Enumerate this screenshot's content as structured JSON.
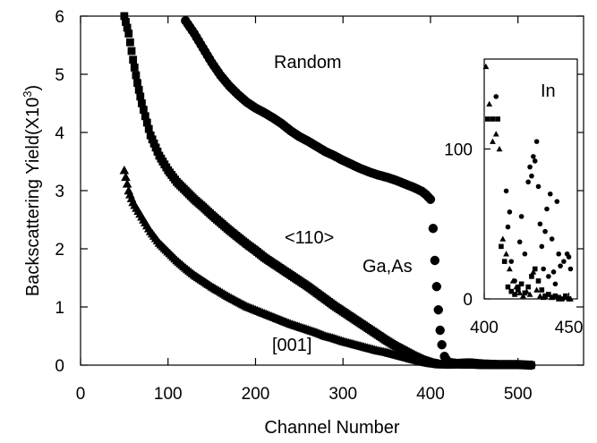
{
  "chart_data": [
    {
      "type": "scatter",
      "title": "",
      "xlabel": "Channel Number",
      "ylabel": "Backscattering Yield(X10",
      "ylabel_superscript": "3",
      "ylabel_suffix": ")",
      "xlim": [
        0,
        575
      ],
      "ylim": [
        0,
        6
      ],
      "xticks": [
        0,
        100,
        200,
        300,
        400,
        500
      ],
      "yticks": [
        0,
        1,
        2,
        3,
        4,
        5,
        6
      ],
      "grid": false,
      "annotations": [
        "Random",
        "<110>",
        "Ga,As",
        "[001]"
      ],
      "series": [
        {
          "name": "Random",
          "marker": "circle",
          "color": "#000000",
          "points": [
            [
              120,
              5.92
            ],
            [
              130,
              5.7
            ],
            [
              140,
              5.45
            ],
            [
              150,
              5.2
            ],
            [
              160,
              4.98
            ],
            [
              170,
              4.8
            ],
            [
              180,
              4.65
            ],
            [
              190,
              4.52
            ],
            [
              200,
              4.42
            ],
            [
              210,
              4.34
            ],
            [
              220,
              4.25
            ],
            [
              230,
              4.15
            ],
            [
              240,
              4.03
            ],
            [
              250,
              3.93
            ],
            [
              260,
              3.85
            ],
            [
              270,
              3.76
            ],
            [
              280,
              3.67
            ],
            [
              290,
              3.6
            ],
            [
              300,
              3.52
            ],
            [
              310,
              3.45
            ],
            [
              320,
              3.38
            ],
            [
              330,
              3.32
            ],
            [
              340,
              3.27
            ],
            [
              350,
              3.23
            ],
            [
              360,
              3.18
            ],
            [
              370,
              3.12
            ],
            [
              380,
              3.06
            ],
            [
              390,
              2.99
            ],
            [
              395,
              2.93
            ],
            [
              400,
              2.85
            ],
            [
              403,
              2.35
            ],
            [
              405,
              1.8
            ],
            [
              407,
              1.35
            ],
            [
              409,
              0.95
            ],
            [
              411,
              0.6
            ],
            [
              413,
              0.35
            ],
            [
              416,
              0.15
            ],
            [
              420,
              0.05
            ],
            [
              430,
              0.03
            ],
            [
              445,
              0.04
            ],
            [
              460,
              0.02
            ],
            [
              480,
              0.01
            ],
            [
              500,
              0.01
            ],
            [
              515,
              0.0
            ]
          ]
        },
        {
          "name": "<110>",
          "marker": "square",
          "color": "#000000",
          "points": [
            [
              50,
              6.0
            ],
            [
              55,
              5.7
            ],
            [
              60,
              5.25
            ],
            [
              65,
              4.85
            ],
            [
              70,
              4.5
            ],
            [
              80,
              3.95
            ],
            [
              90,
              3.6
            ],
            [
              100,
              3.35
            ],
            [
              110,
              3.15
            ],
            [
              120,
              3.0
            ],
            [
              130,
              2.85
            ],
            [
              140,
              2.72
            ],
            [
              150,
              2.58
            ],
            [
              160,
              2.45
            ],
            [
              170,
              2.32
            ],
            [
              180,
              2.2
            ],
            [
              190,
              2.08
            ],
            [
              200,
              1.97
            ],
            [
              210,
              1.85
            ],
            [
              220,
              1.75
            ],
            [
              230,
              1.65
            ],
            [
              240,
              1.55
            ],
            [
              250,
              1.45
            ],
            [
              260,
              1.35
            ],
            [
              270,
              1.24
            ],
            [
              280,
              1.13
            ],
            [
              290,
              1.02
            ],
            [
              300,
              0.92
            ],
            [
              310,
              0.82
            ],
            [
              320,
              0.72
            ],
            [
              330,
              0.62
            ],
            [
              340,
              0.52
            ],
            [
              350,
              0.42
            ],
            [
              360,
              0.33
            ],
            [
              370,
              0.25
            ],
            [
              380,
              0.17
            ],
            [
              390,
              0.1
            ],
            [
              400,
              0.05
            ],
            [
              410,
              0.02
            ],
            [
              420,
              0.01
            ],
            [
              440,
              0.02
            ],
            [
              460,
              0.01
            ],
            [
              480,
              0.0
            ],
            [
              500,
              0.0
            ],
            [
              515,
              0.0
            ]
          ]
        },
        {
          "name": "[001]",
          "marker": "triangle",
          "color": "#000000",
          "points": [
            [
              50,
              3.35
            ],
            [
              55,
              3.0
            ],
            [
              60,
              2.8
            ],
            [
              70,
              2.55
            ],
            [
              80,
              2.3
            ],
            [
              90,
              2.1
            ],
            [
              100,
              1.95
            ],
            [
              110,
              1.8
            ],
            [
              120,
              1.67
            ],
            [
              130,
              1.55
            ],
            [
              140,
              1.45
            ],
            [
              150,
              1.35
            ],
            [
              160,
              1.26
            ],
            [
              170,
              1.17
            ],
            [
              180,
              1.09
            ],
            [
              190,
              1.01
            ],
            [
              200,
              0.95
            ],
            [
              210,
              0.89
            ],
            [
              220,
              0.83
            ],
            [
              230,
              0.77
            ],
            [
              240,
              0.71
            ],
            [
              250,
              0.66
            ],
            [
              260,
              0.61
            ],
            [
              270,
              0.56
            ],
            [
              280,
              0.5
            ],
            [
              290,
              0.46
            ],
            [
              300,
              0.41
            ],
            [
              310,
              0.37
            ],
            [
              320,
              0.33
            ],
            [
              330,
              0.29
            ],
            [
              340,
              0.25
            ],
            [
              350,
              0.22
            ],
            [
              360,
              0.18
            ],
            [
              370,
              0.14
            ],
            [
              380,
              0.1
            ],
            [
              390,
              0.06
            ],
            [
              400,
              0.03
            ],
            [
              410,
              0.01
            ],
            [
              430,
              0.01
            ],
            [
              460,
              0.0
            ],
            [
              500,
              0.0
            ]
          ]
        }
      ]
    },
    {
      "type": "scatter",
      "title": "In",
      "xlim": [
        400,
        455
      ],
      "ylim": [
        0,
        160
      ],
      "xticks": [
        400,
        450
      ],
      "yticks": [
        0,
        100
      ],
      "grid": false,
      "series": [
        {
          "name": "Random",
          "marker": "circle",
          "points": [
            [
              407,
              135
            ],
            [
              413,
              72
            ],
            [
              414,
              48
            ],
            [
              415,
              58
            ],
            [
              416,
              25
            ],
            [
              418,
              12
            ],
            [
              420,
              8
            ],
            [
              421,
              38
            ],
            [
              422,
              55
            ],
            [
              424,
              30
            ],
            [
              426,
              78
            ],
            [
              427,
              88
            ],
            [
              428,
              82
            ],
            [
              429,
              95
            ],
            [
              430,
              92
            ],
            [
              431,
              105
            ],
            [
              432,
              75
            ],
            [
              433,
              50
            ],
            [
              434,
              35
            ],
            [
              435,
              20
            ],
            [
              436,
              45
            ],
            [
              437,
              60
            ],
            [
              438,
              15
            ],
            [
              439,
              70
            ],
            [
              440,
              40
            ],
            [
              441,
              18
            ],
            [
              442,
              10
            ],
            [
              443,
              65
            ],
            [
              444,
              30
            ],
            [
              445,
              22
            ],
            [
              447,
              25
            ],
            [
              449,
              30
            ],
            [
              450,
              28
            ],
            [
              451,
              20
            ]
          ]
        },
        {
          "name": "<110>",
          "marker": "square",
          "points": [
            [
              402,
              120
            ],
            [
              405,
              120
            ],
            [
              408,
              120
            ],
            [
              410,
              35
            ],
            [
              412,
              25
            ],
            [
              414,
              8
            ],
            [
              416,
              5
            ],
            [
              418,
              3
            ],
            [
              420,
              6
            ],
            [
              422,
              10
            ],
            [
              424,
              4
            ],
            [
              426,
              8
            ],
            [
              428,
              15
            ],
            [
              430,
              20
            ],
            [
              432,
              12
            ],
            [
              434,
              6
            ],
            [
              436,
              2
            ],
            [
              438,
              3
            ],
            [
              440,
              1
            ],
            [
              442,
              2
            ],
            [
              444,
              1
            ],
            [
              446,
              0
            ],
            [
              448,
              2
            ],
            [
              450,
              0
            ]
          ]
        },
        {
          "name": "[001]",
          "marker": "triangle",
          "points": [
            [
              401,
              155
            ],
            [
              403,
              130
            ],
            [
              405,
              105
            ],
            [
              407,
              110
            ],
            [
              409,
              100
            ],
            [
              411,
              40
            ],
            [
              413,
              30
            ],
            [
              415,
              20
            ],
            [
              417,
              12
            ],
            [
              419,
              8
            ],
            [
              421,
              4
            ],
            [
              423,
              2
            ],
            [
              425,
              5
            ],
            [
              427,
              3
            ],
            [
              429,
              18
            ],
            [
              431,
              6
            ],
            [
              433,
              2
            ],
            [
              435,
              1
            ],
            [
              437,
              3
            ],
            [
              440,
              1
            ],
            [
              444,
              0
            ],
            [
              448,
              1
            ],
            [
              451,
              0
            ]
          ]
        }
      ]
    }
  ]
}
